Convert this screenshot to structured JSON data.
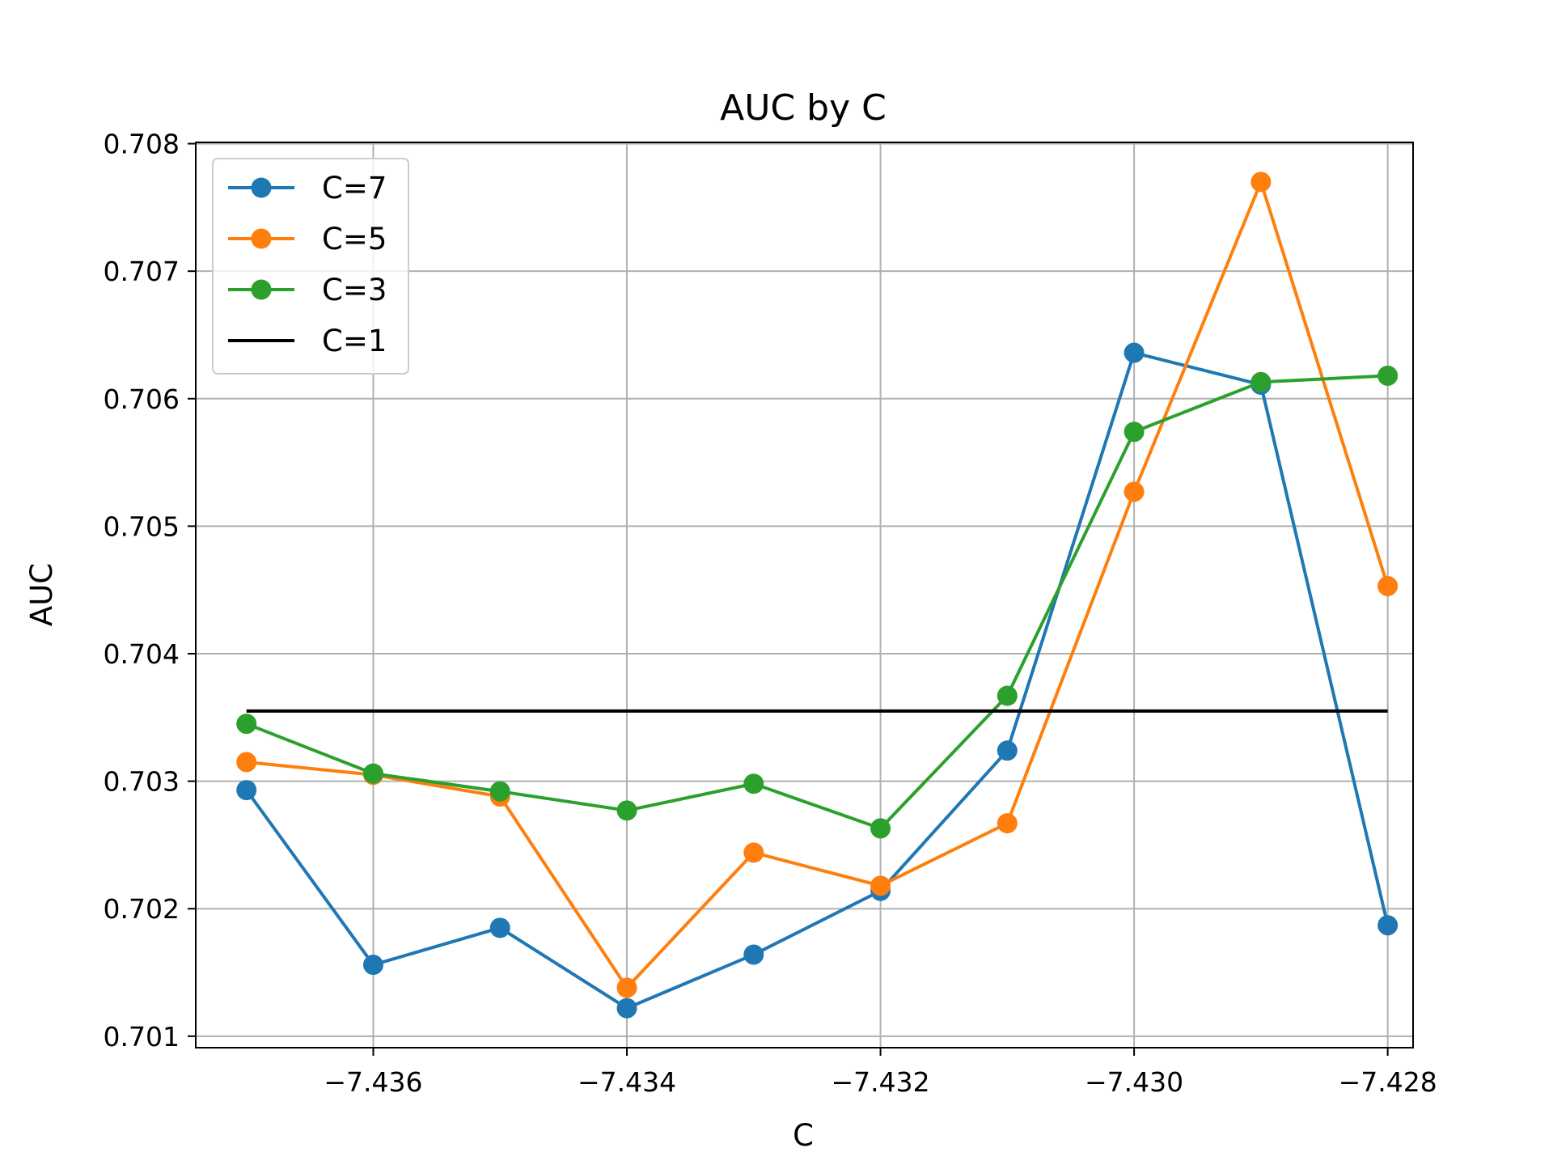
{
  "chart_data": {
    "type": "line",
    "title": "AUC by C",
    "xlabel": "C",
    "ylabel": "AUC",
    "x": [
      -7.437,
      -7.436,
      -7.435,
      -7.434,
      -7.433,
      -7.432,
      -7.431,
      -7.43,
      -7.429,
      -7.428
    ],
    "xlim": [
      -7.4374,
      -7.4278
    ],
    "ylim": [
      0.70091,
      0.70801
    ],
    "x_ticks": [
      -7.436,
      -7.434,
      -7.432,
      -7.43,
      -7.428
    ],
    "x_tick_labels": [
      "−7.436",
      "−7.434",
      "−7.432",
      "−7.430",
      "−7.428"
    ],
    "y_ticks": [
      0.701,
      0.702,
      0.703,
      0.704,
      0.705,
      0.706,
      0.707,
      0.708
    ],
    "y_tick_labels": [
      "0.701",
      "0.702",
      "0.703",
      "0.704",
      "0.705",
      "0.706",
      "0.707",
      "0.708"
    ],
    "grid": true,
    "legend_position": "top-left",
    "series": [
      {
        "name": "C=7",
        "color": "#1f77b4",
        "marker": "circle",
        "values": [
          0.70293,
          0.70156,
          0.70185,
          0.70122,
          0.70164,
          0.70214,
          0.70324,
          0.70636,
          0.70611,
          0.70187
        ]
      },
      {
        "name": "C=5",
        "color": "#ff7f0e",
        "marker": "circle",
        "values": [
          0.70315,
          0.70305,
          0.70288,
          0.70138,
          0.70244,
          0.70218,
          0.70267,
          0.70527,
          0.7077,
          0.70453
        ]
      },
      {
        "name": "C=3",
        "color": "#2ca02c",
        "marker": "circle",
        "values": [
          0.70345,
          0.70306,
          0.70292,
          0.70277,
          0.70298,
          0.70263,
          0.70367,
          0.70574,
          0.70613,
          0.70618
        ]
      },
      {
        "name": "C=1",
        "color": "#000000",
        "marker": "none",
        "values": [
          0.70355,
          0.70355,
          0.70355,
          0.70355,
          0.70355,
          0.70355,
          0.70355,
          0.70355,
          0.70355,
          0.70355
        ]
      }
    ]
  }
}
